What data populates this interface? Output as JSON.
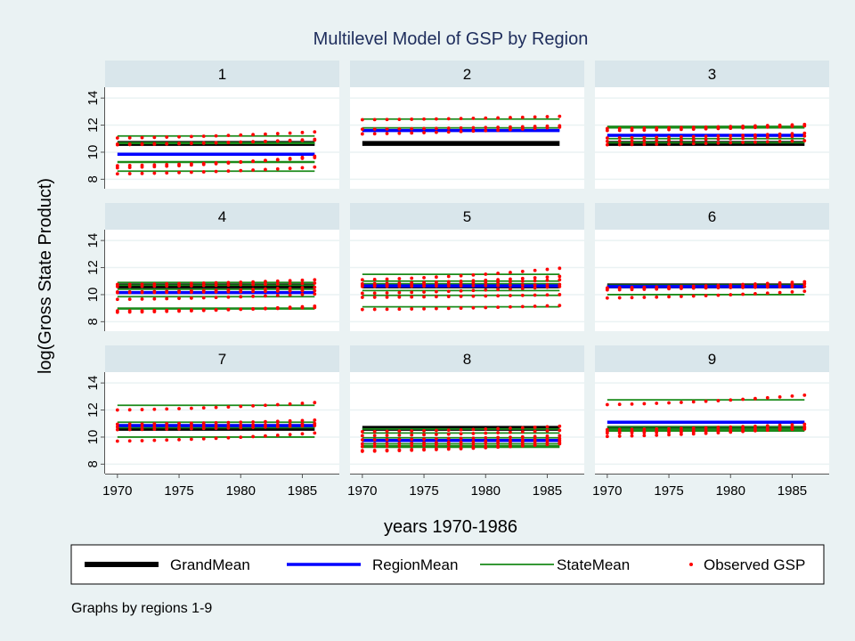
{
  "chart_data": {
    "type": "line",
    "title": "Multilevel Model of GSP by Region",
    "xlabel": "years 1970-1986",
    "ylabel": "log(Gross State Product)",
    "note": "Graphs by regions 1-9",
    "xlim": [
      1969,
      1988
    ],
    "ylim": [
      7.3,
      14.8
    ],
    "xticks": [
      1970,
      1975,
      1980,
      1985
    ],
    "yticks": [
      8,
      10,
      12,
      14
    ],
    "x_years": [
      1970,
      1986
    ],
    "grid": true,
    "legend": {
      "placement": "bottom",
      "entries": [
        "GrandMean",
        "RegionMean",
        "StateMean",
        "Observed GSP"
      ]
    },
    "colors": {
      "GrandMean": "#000000",
      "RegionMean": "#0000ff",
      "StateMean": "#1a8a1a",
      "Observed GSP": "#ff0000"
    },
    "grand_mean": 10.65,
    "panels": [
      {
        "label": "1",
        "region_mean": 9.85,
        "states": [
          {
            "mean": 11.2,
            "obs": [
              11.05,
              11.5
            ]
          },
          {
            "mean": 10.7,
            "obs": [
              10.55,
              10.95
            ]
          },
          {
            "mean": 10.65,
            "obs": [
              10.6,
              10.9
            ]
          },
          {
            "mean": 9.3,
            "obs": [
              9.0,
              9.6
            ]
          },
          {
            "mean": 9.25,
            "obs": [
              8.85,
              9.7
            ]
          },
          {
            "mean": 8.6,
            "obs": [
              8.4,
              8.9
            ]
          }
        ]
      },
      {
        "label": "2",
        "region_mean": 11.6,
        "states": [
          {
            "mean": 12.45,
            "obs": [
              12.4,
              12.65
            ]
          },
          {
            "mean": 11.8,
            "obs": [
              11.7,
              11.95
            ]
          },
          {
            "mean": 11.6,
            "obs": [
              11.35,
              11.85
            ]
          }
        ]
      },
      {
        "label": "3",
        "region_mean": 11.25,
        "states": [
          {
            "mean": 11.9,
            "obs": [
              11.75,
              12.05
            ]
          },
          {
            "mean": 11.8,
            "obs": [
              11.6,
              11.95
            ]
          },
          {
            "mean": 11.2,
            "obs": [
              11.05,
              11.4
            ]
          },
          {
            "mean": 11.0,
            "obs": [
              10.8,
              11.2
            ]
          },
          {
            "mean": 10.7,
            "obs": [
              10.55,
              10.85
            ]
          }
        ]
      },
      {
        "label": "4",
        "region_mean": 10.15,
        "states": [
          {
            "mean": 10.9,
            "obs": [
              10.75,
              11.1
            ]
          },
          {
            "mean": 10.7,
            "obs": [
              10.6,
              10.85
            ]
          },
          {
            "mean": 10.4,
            "obs": [
              10.2,
              10.55
            ]
          },
          {
            "mean": 10.2,
            "obs": [
              10.15,
              10.3
            ]
          },
          {
            "mean": 9.85,
            "obs": [
              9.65,
              10.05
            ]
          },
          {
            "mean": 9.0,
            "obs": [
              8.7,
              9.15
            ]
          },
          {
            "mean": 8.95,
            "obs": [
              8.8,
              9.05
            ]
          }
        ]
      },
      {
        "label": "5",
        "region_mean": 10.65,
        "states": [
          {
            "mean": 11.5,
            "obs": [
              11.1,
              11.95
            ]
          },
          {
            "mean": 11.0,
            "obs": [
              10.8,
              11.35
            ]
          },
          {
            "mean": 10.8,
            "obs": [
              10.7,
              11.1
            ]
          },
          {
            "mean": 10.7,
            "obs": [
              10.6,
              10.75
            ]
          },
          {
            "mean": 10.3,
            "obs": [
              10.1,
              10.6
            ]
          },
          {
            "mean": 9.95,
            "obs": [
              9.8,
              10.0
            ]
          },
          {
            "mean": 9.1,
            "obs": [
              8.9,
              9.2
            ]
          }
        ]
      },
      {
        "label": "6",
        "region_mean": 10.6,
        "states": [
          {
            "mean": 10.7,
            "obs": [
              10.5,
              10.95
            ]
          },
          {
            "mean": 10.6,
            "obs": [
              10.35,
              10.8
            ]
          },
          {
            "mean": 10.55,
            "obs": [
              10.45,
              10.6
            ]
          },
          {
            "mean": 10.0,
            "obs": [
              9.75,
              10.25
            ]
          }
        ]
      },
      {
        "label": "7",
        "region_mean": 10.85,
        "states": [
          {
            "mean": 12.35,
            "obs": [
              12.0,
              12.55
            ]
          },
          {
            "mean": 11.1,
            "obs": [
              10.95,
              11.25
            ]
          },
          {
            "mean": 10.9,
            "obs": [
              10.75,
              11.0
            ]
          },
          {
            "mean": 10.7,
            "obs": [
              10.55,
              10.85
            ]
          },
          {
            "mean": 10.0,
            "obs": [
              9.7,
              10.3
            ]
          }
        ]
      },
      {
        "label": "8",
        "region_mean": 9.75,
        "states": [
          {
            "mean": 10.6,
            "obs": [
              10.4,
              10.8
            ]
          },
          {
            "mean": 10.3,
            "obs": [
              10.1,
              10.5
            ]
          },
          {
            "mean": 9.95,
            "obs": [
              9.8,
              10.1
            ]
          },
          {
            "mean": 9.7,
            "obs": [
              9.5,
              9.9
            ]
          },
          {
            "mean": 9.5,
            "obs": [
              9.3,
              9.75
            ]
          },
          {
            "mean": 9.35,
            "obs": [
              9.0,
              9.6
            ]
          },
          {
            "mean": 9.25,
            "obs": [
              8.95,
              9.5
            ]
          }
        ]
      },
      {
        "label": "9",
        "region_mean": 11.1,
        "states": [
          {
            "mean": 12.75,
            "obs": [
              12.4,
              13.1
            ]
          },
          {
            "mean": 10.75,
            "obs": [
              10.55,
              10.95
            ]
          },
          {
            "mean": 10.6,
            "obs": [
              10.4,
              10.75
            ]
          },
          {
            "mean": 10.5,
            "obs": [
              10.3,
              10.6
            ]
          },
          {
            "mean": 10.45,
            "obs": [
              10.05,
              10.7
            ]
          }
        ]
      }
    ]
  }
}
